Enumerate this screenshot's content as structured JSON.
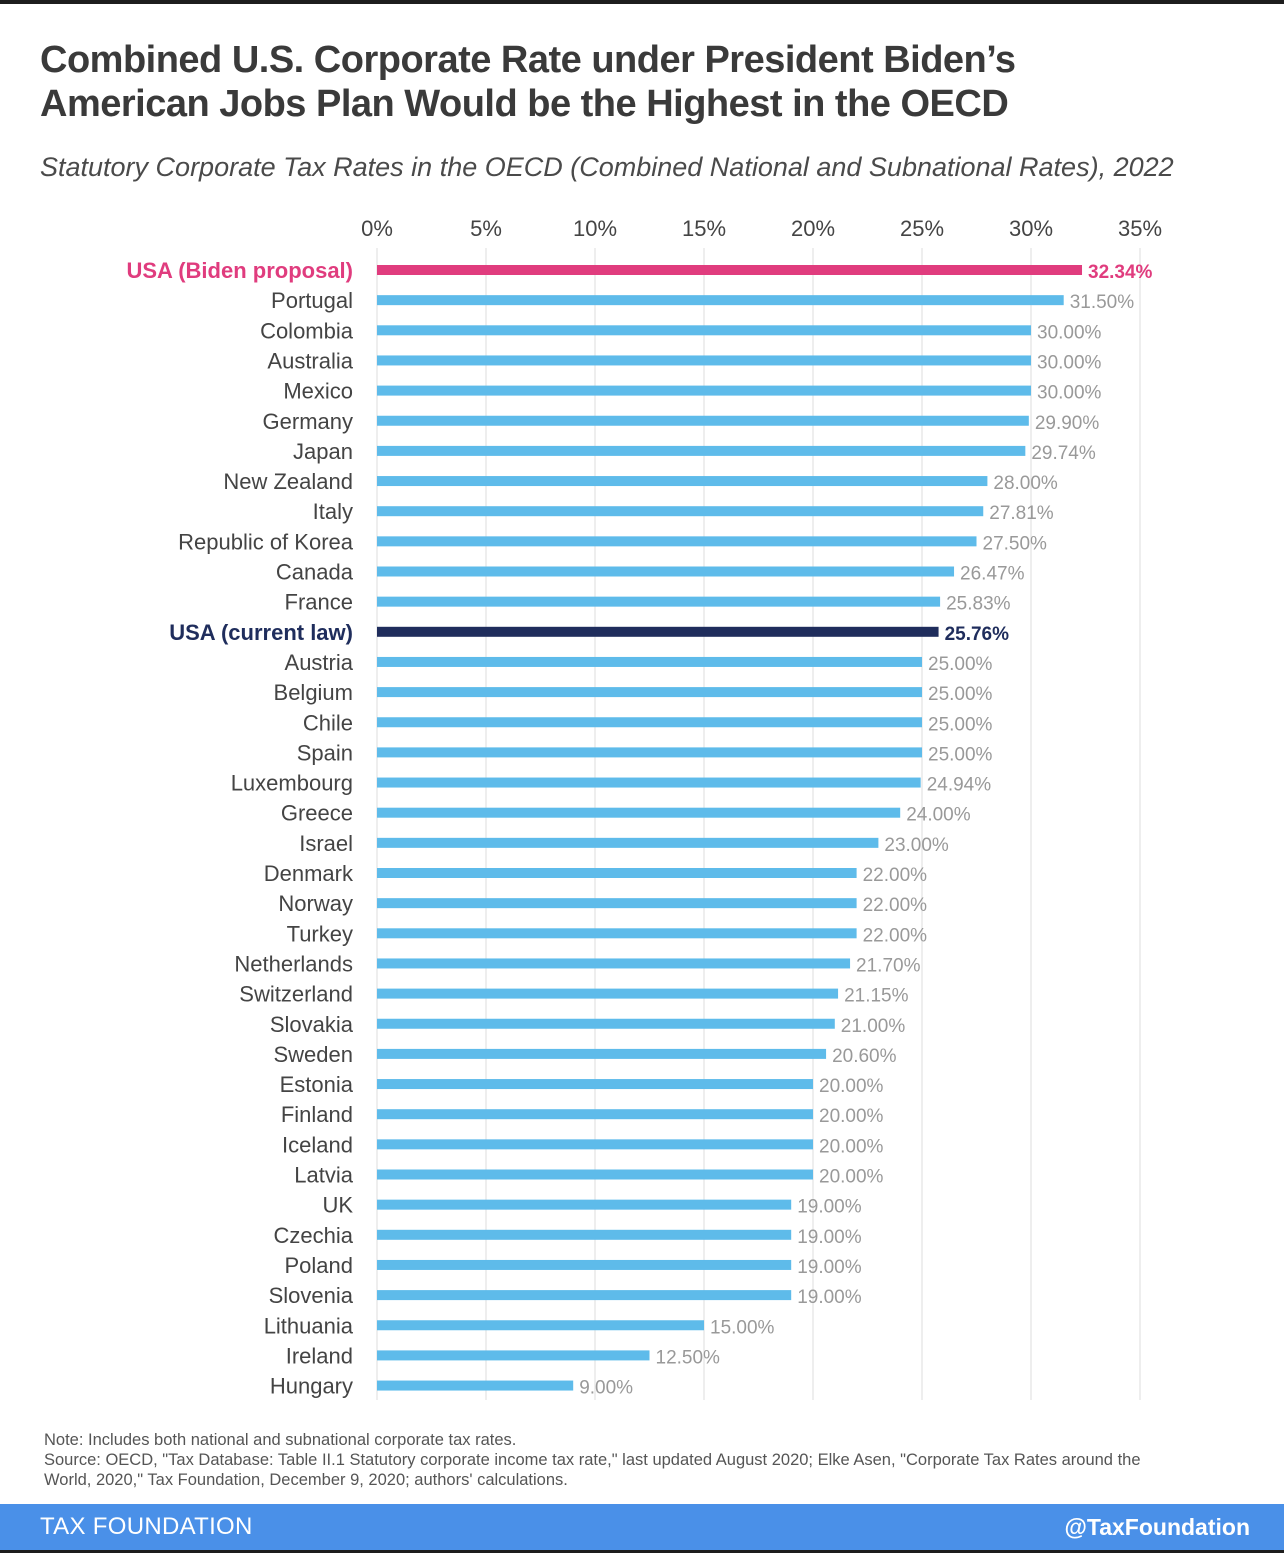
{
  "header": {
    "title_line1": "Combined U.S. Corporate Rate under President Biden’s",
    "title_line2": "American Jobs Plan Would be the Highest in the OECD",
    "subtitle": "Statutory Corporate Tax Rates in the OECD (Combined National and Subnational Rates), 2022"
  },
  "colors": {
    "bar_default": "#5ebbea",
    "bar_biden": "#e03c7e",
    "bar_current": "#1f2d5c",
    "label_default": "#444444",
    "value_default": "#999999",
    "grid": "#dddddd",
    "footer": "#4a90e8"
  },
  "chart_data": {
    "type": "bar",
    "orientation": "horizontal",
    "title": "Statutory Corporate Tax Rates in the OECD (Combined National and Subnational Rates), 2022",
    "xlabel": "",
    "ylabel": "",
    "xlim": [
      0,
      35
    ],
    "xticks": [
      0,
      5,
      10,
      15,
      20,
      25,
      30,
      35
    ],
    "xtick_labels": [
      "0%",
      "5%",
      "10%",
      "15%",
      "20%",
      "25%",
      "30%",
      "35%"
    ],
    "grid": true,
    "categories": [
      "USA (Biden proposal)",
      "Portugal",
      "Colombia",
      "Australia",
      "Mexico",
      "Germany",
      "Japan",
      "New Zealand",
      "Italy",
      "Republic of Korea",
      "Canada",
      "France",
      "USA (current law)",
      "Austria",
      "Belgium",
      "Chile",
      "Spain",
      "Luxembourg",
      "Greece",
      "Israel",
      "Denmark",
      "Norway",
      "Turkey",
      "Netherlands",
      "Switzerland",
      "Slovakia",
      "Sweden",
      "Estonia",
      "Finland",
      "Iceland",
      "Latvia",
      "UK",
      "Czechia",
      "Poland",
      "Slovenia",
      "Lithuania",
      "Ireland",
      "Hungary"
    ],
    "values": [
      32.34,
      31.5,
      30.0,
      30.0,
      30.0,
      29.9,
      29.74,
      28.0,
      27.81,
      27.5,
      26.47,
      25.83,
      25.76,
      25.0,
      25.0,
      25.0,
      25.0,
      24.94,
      24.0,
      23.0,
      22.0,
      22.0,
      22.0,
      21.7,
      21.15,
      21.0,
      20.6,
      20.0,
      20.0,
      20.0,
      20.0,
      19.0,
      19.0,
      19.0,
      19.0,
      15.0,
      12.5,
      9.0
    ],
    "value_labels": [
      "32.34%",
      "31.50%",
      "30.00%",
      "30.00%",
      "30.00%",
      "29.90%",
      "29.74%",
      "28.00%",
      "27.81%",
      "27.50%",
      "26.47%",
      "25.83%",
      "25.76%",
      "25.00%",
      "25.00%",
      "25.00%",
      "25.00%",
      "24.94%",
      "24.00%",
      "23.00%",
      "22.00%",
      "22.00%",
      "22.00%",
      "21.70%",
      "21.15%",
      "21.00%",
      "20.60%",
      "20.00%",
      "20.00%",
      "20.00%",
      "20.00%",
      "19.00%",
      "19.00%",
      "19.00%",
      "19.00%",
      "15.00%",
      "12.50%",
      "9.00%"
    ],
    "highlights": {
      "USA (Biden proposal)": "biden",
      "USA (current law)": "current"
    }
  },
  "notes": {
    "note": "Note: Includes both national and subnational corporate tax rates.",
    "source_line1": "Source: OECD, \"Tax Database: Table II.1 Statutory corporate income tax rate,\" last updated August 2020; Elke Asen, \"Corporate Tax Rates around the",
    "source_line2": "World, 2020,\" Tax Foundation, December 9, 2020; authors' calculations."
  },
  "footer": {
    "brand": "TAX FOUNDATION",
    "handle": "@TaxFoundation"
  }
}
